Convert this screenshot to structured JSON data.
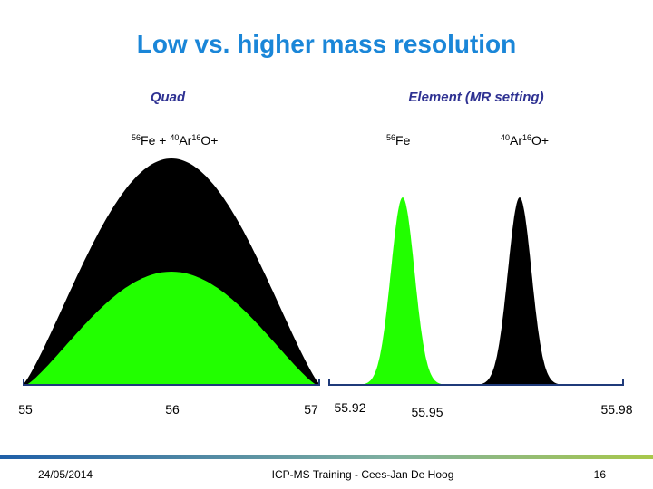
{
  "header": {
    "title": "Low vs. higher mass resolution"
  },
  "panels": [
    {
      "label": "Quad",
      "species": [
        [
          {
            "sup": "56",
            "base": "Fe + "
          },
          {
            "sup": "40",
            "base": "Ar"
          },
          {
            "sup": "16",
            "base": "O+"
          }
        ]
      ],
      "ticks": [
        "55",
        "56",
        "57"
      ]
    },
    {
      "label": "Element (MR setting)",
      "species": [
        [
          {
            "sup": "56",
            "base": "Fe"
          }
        ],
        [
          {
            "sup": "40",
            "base": "Ar"
          },
          {
            "sup": "16",
            "base": "O+"
          }
        ]
      ],
      "ticks": [
        "55.92",
        "55.95",
        "55.98"
      ]
    }
  ],
  "footer": {
    "date": "24/05/2014",
    "center": "ICP-MS Training - Cees-Jan De Hoog",
    "page": "16"
  }
}
